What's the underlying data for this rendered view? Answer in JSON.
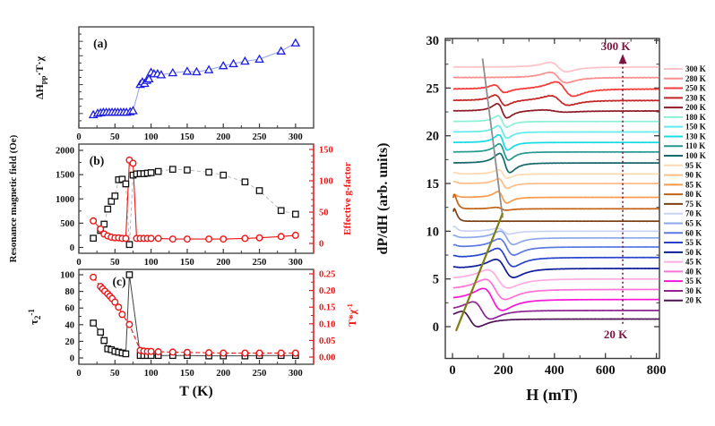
{
  "figure": {
    "background": "#ffffff",
    "axis_color": "#3a3a3a",
    "red_axis_color": "#ee1515"
  },
  "chart_data": [
    {
      "id": "panel_a",
      "type": "scatter",
      "tag": "(a)",
      "ylabel_parts": [
        {
          "t": "ΔH"
        },
        {
          "t": "pp",
          "s": "sub"
        },
        {
          "t": "·T·χ"
        }
      ],
      "ylabel_plain": "ΔHpp·T·χ",
      "xlabel": "",
      "xticks": [
        0,
        50,
        100,
        150,
        200,
        250,
        300
      ],
      "xlim": [
        0,
        325
      ],
      "ylim": [
        0,
        1
      ],
      "y_units": "normalized (no y tick numbers shown)",
      "marker": "triangle",
      "marker_color": "#1d1de0",
      "line_color": "#99a8f0",
      "points": [
        [
          20,
          0.13
        ],
        [
          26,
          0.145
        ],
        [
          30,
          0.15
        ],
        [
          34,
          0.155
        ],
        [
          38,
          0.155
        ],
        [
          42,
          0.155
        ],
        [
          46,
          0.155
        ],
        [
          50,
          0.155
        ],
        [
          54,
          0.155
        ],
        [
          58,
          0.155
        ],
        [
          62,
          0.155
        ],
        [
          66,
          0.155
        ],
        [
          71,
          0.16
        ],
        [
          75,
          0.17
        ],
        [
          85,
          0.43
        ],
        [
          88,
          0.455
        ],
        [
          91,
          0.44
        ],
        [
          94,
          0.47
        ],
        [
          97,
          0.485
        ],
        [
          100,
          0.55
        ],
        [
          104,
          0.535
        ],
        [
          109,
          0.535
        ],
        [
          114,
          0.525
        ],
        [
          130,
          0.545
        ],
        [
          150,
          0.56
        ],
        [
          163,
          0.555
        ],
        [
          180,
          0.575
        ],
        [
          200,
          0.615
        ],
        [
          214,
          0.635
        ],
        [
          230,
          0.66
        ],
        [
          250,
          0.68
        ],
        [
          280,
          0.76
        ],
        [
          300,
          0.84
        ]
      ]
    },
    {
      "id": "panel_b",
      "type": "scatter",
      "tag": "(b)",
      "xticks": [
        0,
        50,
        100,
        150,
        200,
        250,
        300
      ],
      "xlim": [
        0,
        325
      ],
      "left": {
        "label": "Resonance magnetic field (Oe)",
        "ticks": [
          0,
          500,
          1000,
          1500,
          2000
        ],
        "minor_step": 250,
        "range": [
          0,
          2000
        ],
        "color": "#111111",
        "marker": "square",
        "line_color": "#b9b9b9",
        "line_style": "dashed",
        "points": [
          [
            20,
            190
          ],
          [
            30,
            350
          ],
          [
            35,
            480
          ],
          [
            40,
            790
          ],
          [
            45,
            950
          ],
          [
            50,
            1060
          ],
          [
            55,
            1395
          ],
          [
            60,
            1405
          ],
          [
            65,
            1310
          ],
          [
            70,
            60
          ],
          [
            75,
            1490
          ],
          [
            80,
            1515
          ],
          [
            85,
            1520
          ],
          [
            90,
            1520
          ],
          [
            95,
            1530
          ],
          [
            100,
            1540
          ],
          [
            110,
            1565
          ],
          [
            130,
            1610
          ],
          [
            150,
            1595
          ],
          [
            180,
            1550
          ],
          [
            200,
            1490
          ],
          [
            230,
            1350
          ],
          [
            250,
            1170
          ],
          [
            280,
            760
          ],
          [
            300,
            685
          ]
        ]
      },
      "right": {
        "label": "Effective g-factor",
        "ticks": [
          0,
          50,
          100,
          150
        ],
        "minor_step": 10,
        "range": [
          0,
          150
        ],
        "color": "#ee1515",
        "marker": "circle",
        "line_style": "solid",
        "points": [
          [
            20,
            36
          ],
          [
            30,
            23
          ],
          [
            35,
            15
          ],
          [
            40,
            12
          ],
          [
            45,
            10
          ],
          [
            50,
            9
          ],
          [
            55,
            9
          ],
          [
            60,
            8
          ],
          [
            65,
            8
          ],
          [
            70,
            133
          ],
          [
            75,
            128
          ],
          [
            80,
            8
          ],
          [
            85,
            8
          ],
          [
            90,
            8
          ],
          [
            95,
            8
          ],
          [
            100,
            8
          ],
          [
            110,
            8
          ],
          [
            130,
            7
          ],
          [
            150,
            7
          ],
          [
            180,
            7
          ],
          [
            200,
            7
          ],
          [
            230,
            8
          ],
          [
            250,
            9
          ],
          [
            280,
            11
          ],
          [
            300,
            13
          ]
        ]
      }
    },
    {
      "id": "panel_c",
      "type": "scatter",
      "tag": "(c)",
      "xlabel": "T (K)",
      "xticks": [
        0,
        50,
        100,
        150,
        200,
        250,
        300
      ],
      "xlim": [
        0,
        325
      ],
      "left": {
        "label_parts": [
          {
            "t": "τ"
          },
          {
            "t": "2",
            "s": "sub"
          },
          {
            "t": "-1",
            "s": "sup"
          }
        ],
        "label_plain": "τ2-1",
        "ticks": [
          0,
          20,
          40,
          60,
          80,
          100
        ],
        "minor_step": 10,
        "range": [
          0,
          100
        ],
        "color": "#111111",
        "marker": "square",
        "line_color": "#444444",
        "line_style": "solid",
        "points": [
          [
            20,
            42
          ],
          [
            30,
            31
          ],
          [
            35,
            21
          ],
          [
            40,
            11
          ],
          [
            45,
            10
          ],
          [
            50,
            8
          ],
          [
            55,
            7
          ],
          [
            60,
            6
          ],
          [
            65,
            5
          ],
          [
            70,
            100
          ],
          [
            85,
            3
          ],
          [
            90,
            3
          ],
          [
            95,
            3
          ],
          [
            100,
            3
          ],
          [
            110,
            3
          ],
          [
            130,
            3
          ],
          [
            150,
            3
          ],
          [
            180,
            2.5
          ],
          [
            200,
            2.5
          ],
          [
            230,
            2.5
          ],
          [
            250,
            3
          ],
          [
            280,
            3
          ],
          [
            300,
            3
          ]
        ]
      },
      "right": {
        "label_parts": [
          {
            "t": "T*χ"
          },
          {
            "t": "-1",
            "s": "sup"
          }
        ],
        "label_plain": "T*χ-1",
        "ticks": [
          0,
          0.05,
          0.1,
          0.15,
          0.2,
          0.25
        ],
        "tick_decimals": 2,
        "minor_step": 0.025,
        "range": [
          0,
          0.25
        ],
        "color": "#ee1515",
        "marker": "circle",
        "line_style": "dashed",
        "points": [
          [
            20,
            0.24
          ],
          [
            30,
            0.212
          ],
          [
            33,
            0.205
          ],
          [
            36,
            0.198
          ],
          [
            40,
            0.19
          ],
          [
            43,
            0.183
          ],
          [
            46,
            0.176
          ],
          [
            50,
            0.165
          ],
          [
            55,
            0.15
          ],
          [
            60,
            0.128
          ],
          [
            70,
            0.098
          ],
          [
            85,
            0.02
          ],
          [
            90,
            0.018
          ],
          [
            95,
            0.017
          ],
          [
            100,
            0.017
          ],
          [
            110,
            0.016
          ],
          [
            130,
            0.015
          ],
          [
            150,
            0.014
          ],
          [
            180,
            0.013
          ],
          [
            200,
            0.012
          ],
          [
            230,
            0.012
          ],
          [
            250,
            0.012
          ],
          [
            280,
            0.012
          ],
          [
            300,
            0.012
          ]
        ]
      }
    },
    {
      "id": "esr_spectra",
      "type": "line",
      "xlabel": "H (mT)",
      "ylabel": "dP/dH (arb. units)",
      "xticks": [
        0,
        200,
        400,
        600,
        800
      ],
      "x_minor_step": 100,
      "yticks": [
        0,
        5,
        10,
        15,
        20,
        25,
        30
      ],
      "y_minor_step": 2.5,
      "xlim": [
        -30,
        830
      ],
      "ylim": [
        -3.3,
        30.2
      ],
      "legend_position": "right-outside",
      "annotation_arrow": {
        "x": 668,
        "y0": 0.3,
        "y1": 28.2,
        "color": "#7c1641",
        "style": "dotted",
        "top_label": "300 K",
        "bottom_label": "20 K"
      },
      "guide_lines": [
        {
          "color": "#8e8e8e",
          "from": [
            118,
            28.1
          ],
          "to": [
            197,
            11.4
          ]
        },
        {
          "color": "#7e7e14",
          "from": [
            14,
            -0.45
          ],
          "to": [
            197,
            11.9
          ]
        }
      ],
      "series_note": "each series is a derivative ESR lineshape: offset = vertical baseline (arb.units); features = [center_mT, width_mT, amplitude]; spike = amplitude of sharp low-field transient near H=0",
      "series": [
        {
          "label": "300 K",
          "color": "#ffc2cb",
          "offset": 27.2,
          "features": [
            [
              415,
              55,
              0.5
            ]
          ],
          "spike": 0,
          "noise": 0.03
        },
        {
          "label": "280 K",
          "color": "#fb8f8f",
          "offset": 26.1,
          "features": [
            [
              415,
              55,
              0.55
            ]
          ],
          "spike": 0,
          "noise": 0.03
        },
        {
          "label": "250 K",
          "color": "#f93a3a",
          "offset": 24.9,
          "features": [
            [
              185,
              35,
              0.4
            ],
            [
              440,
              60,
              0.75
            ]
          ],
          "spike": 0,
          "noise": 0.035
        },
        {
          "label": "230 K",
          "color": "#c32525",
          "offset": 23.7,
          "features": [
            [
              188,
              35,
              0.55
            ],
            [
              420,
              60,
              0.5
            ]
          ],
          "spike": 0,
          "noise": 0.03
        },
        {
          "label": "200 K",
          "color": "#8d1b28",
          "offset": 22.6,
          "features": [
            [
              195,
              33,
              0.75
            ],
            [
              400,
              80,
              0.12
            ]
          ],
          "spike": 0,
          "noise": 0.02
        },
        {
          "label": "180 K",
          "color": "#8bf0d6",
          "offset": 21.5,
          "features": [
            [
              196,
              30,
              0.6
            ]
          ],
          "spike": 0,
          "noise": 0.012
        },
        {
          "label": "150 K",
          "color": "#5fecea",
          "offset": 20.4,
          "features": [
            [
              197,
              30,
              0.65
            ]
          ],
          "spike": 0,
          "noise": 0.012
        },
        {
          "label": "130 K",
          "color": "#15dce4",
          "offset": 19.3,
          "features": [
            [
              199,
              30,
              0.8
            ]
          ],
          "spike": 0,
          "noise": 0.012
        },
        {
          "label": "110 K",
          "color": "#26998f",
          "offset": 18.3,
          "features": [
            [
              202,
              32,
              0.85
            ]
          ],
          "spike": 0,
          "noise": 0.012
        },
        {
          "label": "100 K",
          "color": "#16696a",
          "offset": 17.15,
          "features": [
            [
              205,
              35,
              1.0
            ]
          ],
          "spike": 0,
          "noise": 0.012
        },
        {
          "label": "95 K",
          "color": "#ffd8b0",
          "offset": 16.0,
          "features": [
            [
              198,
              30,
              0.45
            ]
          ],
          "spike": 0.15,
          "noise": 0.01
        },
        {
          "label": "90 K",
          "color": "#ffbc87",
          "offset": 15.0,
          "features": [
            [
              198,
              30,
              0.5
            ]
          ],
          "spike": 0.2,
          "noise": 0.01
        },
        {
          "label": "85 K",
          "color": "#fb9a4b",
          "offset": 13.55,
          "features": [
            [
              196,
              30,
              0.6
            ]
          ],
          "spike": 0.3,
          "noise": 0.01
        },
        {
          "label": "80 K",
          "color": "#c26316",
          "offset": 12.35,
          "features": [
            [
              192,
              35,
              0.15
            ]
          ],
          "spike": 1.5,
          "noise": 0.01
        },
        {
          "label": "75 K",
          "color": "#7d4012",
          "offset": 11.05,
          "features": [],
          "spike": 1.3,
          "noise": 0.01
        },
        {
          "label": "70 K",
          "color": "#c9d2f2",
          "offset": 10.0,
          "features": [
            [
              200,
              40,
              0.3
            ]
          ],
          "spike": 0.5,
          "noise": 0.01
        },
        {
          "label": "65 K",
          "color": "#8da8ea",
          "offset": 9.3,
          "features": [
            [
              213,
              45,
              0.7
            ]
          ],
          "spike": 0.25,
          "noise": 0.01
        },
        {
          "label": "60 K",
          "color": "#5b79e0",
          "offset": 8.35,
          "features": [
            [
              212,
              50,
              0.85
            ]
          ],
          "spike": 0.2,
          "noise": 0.01
        },
        {
          "label": "55 K",
          "color": "#2744cd",
          "offset": 7.25,
          "features": [
            [
              208,
              55,
              0.95
            ]
          ],
          "spike": 0.15,
          "noise": 0.01
        },
        {
          "label": "50 K",
          "color": "#0e1c9a",
          "offset": 6.1,
          "features": [
            [
              205,
              60,
              0.95
            ]
          ],
          "spike": 0.1,
          "noise": 0.01
        },
        {
          "label": "45 K",
          "color": "#ffabe3",
          "offset": 5.0,
          "features": [
            [
              178,
              70,
              0.95
            ]
          ],
          "spike": 0,
          "noise": 0.01
        },
        {
          "label": "40 K",
          "color": "#ff70d8",
          "offset": 3.9,
          "features": [
            [
              168,
              68,
              1.05
            ]
          ],
          "spike": 0,
          "noise": 0.01
        },
        {
          "label": "35 K",
          "color": "#fb16d7",
          "offset": 2.85,
          "features": [
            [
              158,
              65,
              1.15
            ]
          ],
          "spike": 0,
          "noise": 0.01
        },
        {
          "label": "30 K",
          "color": "#8c2390",
          "offset": 1.7,
          "features": [
            [
              115,
              60,
              0.9
            ]
          ],
          "spike": 0,
          "noise": 0.01
        },
        {
          "label": "20 K",
          "color": "#4e1253",
          "offset": 0.8,
          "features": [
            [
              68,
              55,
              0.8
            ]
          ],
          "spike": 0,
          "noise": 0.01
        }
      ]
    }
  ]
}
